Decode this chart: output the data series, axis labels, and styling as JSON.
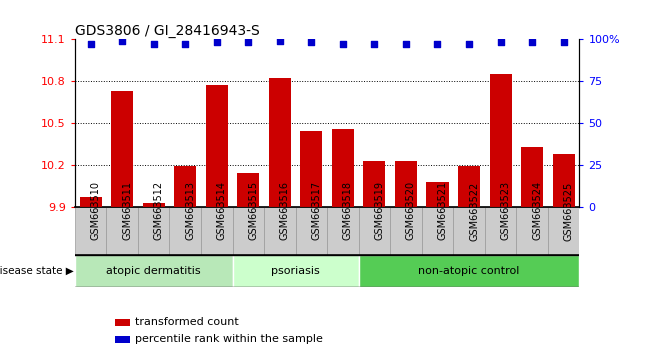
{
  "title": "GDS3806 / GI_28416943-S",
  "samples": [
    "GSM663510",
    "GSM663511",
    "GSM663512",
    "GSM663513",
    "GSM663514",
    "GSM663515",
    "GSM663516",
    "GSM663517",
    "GSM663518",
    "GSM663519",
    "GSM663520",
    "GSM663521",
    "GSM663522",
    "GSM663523",
    "GSM663524",
    "GSM663525"
  ],
  "bar_values": [
    9.97,
    10.73,
    9.93,
    10.19,
    10.77,
    10.14,
    10.82,
    10.44,
    10.46,
    10.23,
    10.23,
    10.08,
    10.19,
    10.85,
    10.33,
    10.28
  ],
  "percentile_values": [
    97,
    99,
    97,
    97,
    98,
    98,
    99,
    98,
    97,
    97,
    97,
    97,
    97,
    98,
    98,
    98
  ],
  "bar_color": "#cc0000",
  "percentile_color": "#0000cc",
  "ylim_left": [
    9.9,
    11.1
  ],
  "ylim_right": [
    0,
    100
  ],
  "yticks_left": [
    9.9,
    10.2,
    10.5,
    10.8,
    11.1
  ],
  "yticks_right": [
    0,
    25,
    50,
    75,
    100
  ],
  "ytick_labels_right": [
    "0",
    "25",
    "50",
    "75",
    "100%"
  ],
  "groups": [
    {
      "label": "atopic dermatitis",
      "start": 0,
      "end": 5,
      "color": "#b8e8b8"
    },
    {
      "label": "psoriasis",
      "start": 5,
      "end": 9,
      "color": "#ccffcc"
    },
    {
      "label": "non-atopic control",
      "start": 9,
      "end": 16,
      "color": "#55cc55"
    }
  ],
  "disease_state_label": "disease state",
  "legend_red_label": "transformed count",
  "legend_blue_label": "percentile rank within the sample",
  "bar_width": 0.7,
  "baseline": 9.9,
  "gridlines": [
    10.2,
    10.5,
    10.8
  ],
  "tick_label_fontsize": 7,
  "title_fontsize": 10
}
